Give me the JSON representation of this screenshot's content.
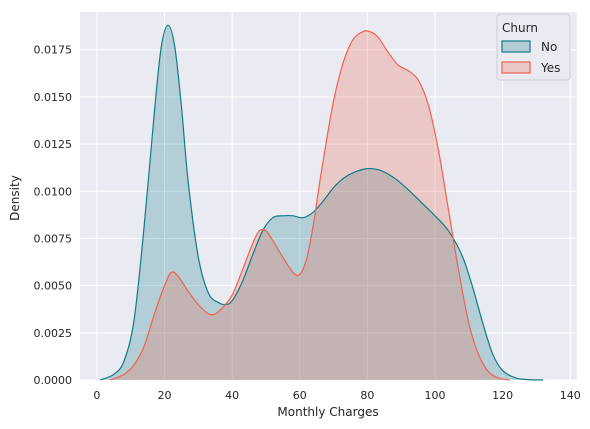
{
  "chart_data": {
    "type": "area",
    "xlabel": "Monthly Charges",
    "ylabel": "Density",
    "xlim": [
      -5,
      142
    ],
    "ylim": [
      0,
      0.0195
    ],
    "x_ticks": [
      0,
      20,
      40,
      60,
      80,
      100,
      120,
      140
    ],
    "y_ticks": [
      0.0,
      0.0025,
      0.005,
      0.0075,
      0.01,
      0.0125,
      0.015,
      0.0175
    ],
    "y_tick_labels": [
      "0.0000",
      "0.0025",
      "0.0050",
      "0.0075",
      "0.0100",
      "0.0125",
      "0.0150",
      "0.0175"
    ],
    "grid": true,
    "background": "#eaeaf2",
    "legend": {
      "title": "Churn",
      "placement": "top-right"
    },
    "series": [
      {
        "name": "No",
        "color": "#0e7c86",
        "fill": "#0e7c86",
        "x": [
          1,
          5,
          8,
          11,
          14,
          17,
          19,
          21,
          23,
          25,
          27,
          30,
          33,
          36,
          38,
          40,
          43,
          46,
          49,
          52,
          55,
          58,
          61,
          64,
          67,
          70,
          73,
          76,
          80,
          84,
          88,
          92,
          96,
          100,
          104,
          108,
          111,
          114,
          117,
          120,
          124,
          128,
          132
        ],
        "y": [
          0.0,
          0.0003,
          0.001,
          0.0032,
          0.0082,
          0.0142,
          0.0176,
          0.0188,
          0.0177,
          0.0145,
          0.0105,
          0.0065,
          0.0046,
          0.0041,
          0.004,
          0.0042,
          0.0052,
          0.0066,
          0.0079,
          0.0086,
          0.0087,
          0.0087,
          0.0086,
          0.0089,
          0.0095,
          0.0102,
          0.0107,
          0.011,
          0.0112,
          0.0111,
          0.0107,
          0.0101,
          0.0094,
          0.0087,
          0.0079,
          0.0066,
          0.005,
          0.0031,
          0.0014,
          0.0005,
          0.0001,
          2e-05,
          0.0
        ]
      },
      {
        "name": "Yes",
        "color": "#f0624d",
        "fill": "#f0624d",
        "x": [
          4,
          8,
          11,
          14,
          17,
          20,
          22,
          24,
          27,
          30,
          33,
          35,
          37,
          40,
          43,
          46,
          48,
          50,
          52,
          55,
          58,
          60,
          62,
          64,
          66,
          68,
          70,
          72,
          74,
          76,
          78,
          80,
          83,
          86,
          89,
          92,
          95,
          98,
          101,
          104,
          107,
          110,
          113,
          116,
          119,
          122
        ],
        "y": [
          0.0,
          0.0003,
          0.0008,
          0.0018,
          0.0035,
          0.005,
          0.0057,
          0.0055,
          0.0047,
          0.004,
          0.0035,
          0.0035,
          0.0038,
          0.0045,
          0.0058,
          0.0072,
          0.0079,
          0.0079,
          0.0074,
          0.0065,
          0.0057,
          0.0056,
          0.0064,
          0.0082,
          0.0106,
          0.0128,
          0.0148,
          0.0163,
          0.0174,
          0.0181,
          0.0184,
          0.0185,
          0.0182,
          0.0174,
          0.0167,
          0.0164,
          0.0159,
          0.0146,
          0.0122,
          0.009,
          0.0058,
          0.003,
          0.0013,
          0.0004,
          0.0001,
          0.0
        ]
      }
    ]
  }
}
